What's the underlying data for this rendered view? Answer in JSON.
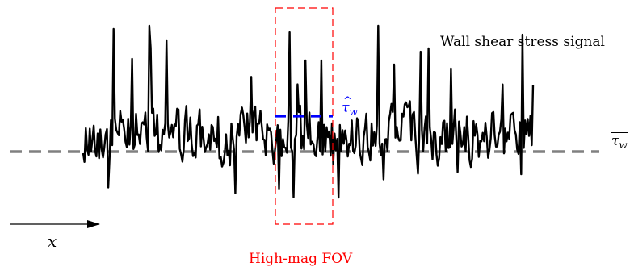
{
  "labels": {
    "signal": "Wall shear stress signal",
    "fov": "High-mag FOV",
    "x_axis": "x",
    "local_mean_symbol": "τ",
    "local_mean_subscript": "w",
    "global_mean_symbol": "τ",
    "global_mean_subscript": "w"
  },
  "colors": {
    "signal": "#000000",
    "mean_line": "#808080",
    "fov_box": "#ff0000",
    "local_mean": "#0000ff",
    "fov_text": "#ff0000"
  }
}
